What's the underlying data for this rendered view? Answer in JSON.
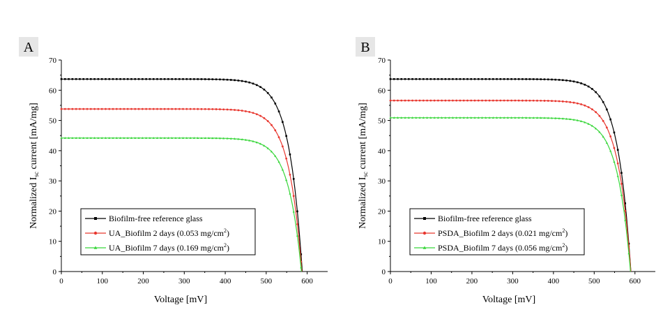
{
  "chart_data": [
    {
      "panel_label": "A",
      "type": "line",
      "xlabel": "Voltage  [mV]",
      "ylabel_main": "Normalized I",
      "ylabel_sub": "sc",
      "ylabel_rest": " current [mA/mg]",
      "xlim": [
        0,
        650
      ],
      "ylim": [
        0,
        70
      ],
      "xticks": [
        0,
        100,
        200,
        300,
        400,
        500,
        600
      ],
      "yticks": [
        0,
        10,
        20,
        30,
        40,
        50,
        60,
        70
      ],
      "legend_position": "bottom-left",
      "series": [
        {
          "name": "Biofilm-free reference glass",
          "legend_text": "Biofilm-free reference glass",
          "legend_sup": "",
          "legend_tail": "",
          "color": "#000000",
          "marker": "square",
          "isc": 63.7,
          "voc": 588
        },
        {
          "name": "UA_Biofilm 2 days (0.053 mg/cm2)",
          "legend_text": "UA_Biofilm 2 days (0.053 mg/cm",
          "legend_sup": "2",
          "legend_tail": ")",
          "color": "#e8372f",
          "marker": "circle",
          "isc": 53.8,
          "voc": 587
        },
        {
          "name": "UA_Biofilm 7 days (0.169 mg/cm2)",
          "legend_text": "UA_Biofilm 7 days (0.169 mg/cm",
          "legend_sup": "2",
          "legend_tail": ")",
          "color": "#38d63a",
          "marker": "triangle",
          "isc": 44.2,
          "voc": 586
        }
      ]
    },
    {
      "panel_label": "B",
      "type": "line",
      "xlabel": "Voltage  [mV]",
      "ylabel_main": "Normalized I",
      "ylabel_sub": "sc",
      "ylabel_rest": " current [mA/mg]",
      "xlim": [
        0,
        650
      ],
      "ylim": [
        0,
        70
      ],
      "xticks": [
        0,
        100,
        200,
        300,
        400,
        500,
        600
      ],
      "yticks": [
        0,
        10,
        20,
        30,
        40,
        50,
        60,
        70
      ],
      "legend_position": "bottom-left",
      "series": [
        {
          "name": "Biofilm-free reference glass",
          "legend_text": "Biofilm-free reference glass",
          "legend_sup": "",
          "legend_tail": "",
          "color": "#000000",
          "marker": "square",
          "isc": 63.7,
          "voc": 590
        },
        {
          "name": "PSDA_Biofilm 2 days (0.021 mg/cm2)",
          "legend_text": "PSDA_Biofilm 2 days (0.021 mg/cm",
          "legend_sup": "2",
          "legend_tail": ")",
          "color": "#e8372f",
          "marker": "circle",
          "isc": 56.6,
          "voc": 590
        },
        {
          "name": "PSDA_Biofilm 7 days (0.056 mg/cm2)",
          "legend_text": "PSDA_Biofilm 7 days (0.056 mg/cm",
          "legend_sup": "2",
          "legend_tail": ")",
          "color": "#38d63a",
          "marker": "triangle",
          "isc": 50.9,
          "voc": 589
        }
      ]
    }
  ]
}
